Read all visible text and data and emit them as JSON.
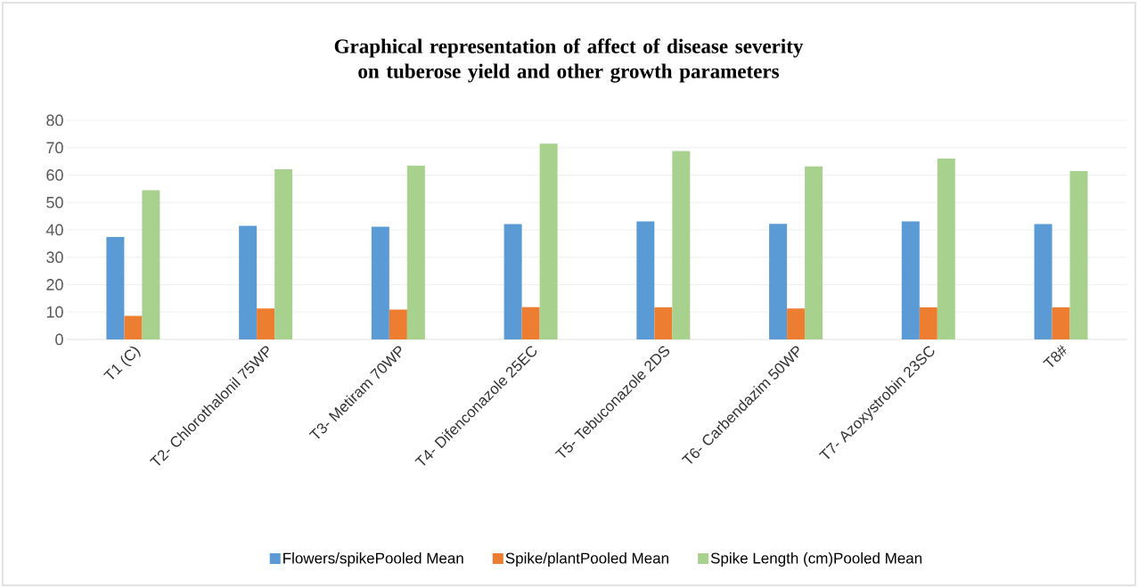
{
  "chart_data": {
    "type": "bar",
    "title": "Graphical representation of affect of disease severity on tuberose yield and other growth parameters",
    "categories": [
      "T1 (C)",
      "T2- Chlorothalonil 75WP",
      "T3- Metiram 70WP",
      "T4- Difenconazole 25EC",
      "T5- Tebuconazole 2DS",
      "T6- Carbendazim 50WP",
      "T7- Azoxystrobin 23SC",
      "T8#"
    ],
    "series": [
      {
        "name": "Flowers/spikePooled Mean",
        "color": "#5b9bd5",
        "values": [
          37.4,
          41.5,
          41.1,
          42.1,
          43.1,
          42.2,
          43.1,
          42.1
        ]
      },
      {
        "name": "Spike/plantPooled Mean",
        "color": "#ed7d31",
        "values": [
          8.6,
          11.3,
          10.9,
          11.8,
          11.7,
          11.3,
          11.7,
          11.7
        ]
      },
      {
        "name": "Spike Length (cm)Pooled Mean",
        "color": "#a9d18e",
        "values": [
          54.5,
          62.1,
          63.4,
          71.5,
          68.8,
          63.2,
          66.0,
          61.5
        ]
      }
    ],
    "ylim": [
      0,
      80
    ],
    "yticks": [
      0,
      10,
      20,
      30,
      40,
      50,
      60,
      70,
      80
    ],
    "grid": "y",
    "legend": "bottom"
  }
}
